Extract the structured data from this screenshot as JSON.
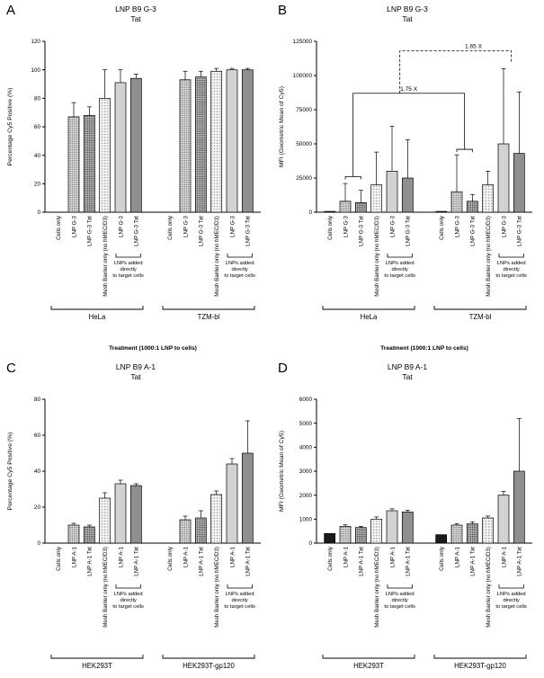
{
  "colors": {
    "black": "#1a1a1a",
    "gray-light": "#d2d2d2",
    "gray-dark": "#8f8f8f",
    "stipple-dark-bg": "#dedede",
    "stipple-dark-dot": "#4a4a4a",
    "stipple-darker-bg": "#c2c2c2",
    "stipple-darker-dot": "#383838",
    "stipple-light-bg": "#f3f3f3",
    "stipple-light-dot": "#6a6a6a",
    "axis": "#000000"
  },
  "bar_fills": [
    "black",
    "stipple-dark",
    "stipple-darker",
    "stipple-light",
    "gray-light",
    "gray-dark"
  ],
  "chart_data": [
    {
      "panel_letter": "A",
      "type": "bar",
      "title": "LNP B9 G-3\nTat",
      "ylabel": "Percentage Cy5 Positive (%)",
      "xlabel": "Treatment (1000:1 LNP to cells)",
      "ylim": [
        0,
        120
      ],
      "yticks": [
        0,
        20,
        40,
        60,
        80,
        100,
        120
      ],
      "categories": [
        "Cells only",
        "LNP G-3",
        "LNP G-3 Tat",
        "Mesh Barrier only (no hMEC/D3)",
        "LNP G-3",
        "LNP G-3 Tat"
      ],
      "series": [
        {
          "name": "HeLa",
          "values": [
            0,
            67,
            68,
            80,
            91,
            94
          ],
          "errors": [
            0,
            10,
            6,
            20,
            9,
            3
          ]
        },
        {
          "name": "TZM-bl",
          "values": [
            0,
            93,
            95,
            99,
            100,
            100
          ],
          "errors": [
            0,
            6,
            4,
            2,
            1,
            1
          ]
        }
      ],
      "direct_bracket": {
        "from": 4,
        "to": 5,
        "label": "LNPs added\ndirectly\nto target cells"
      },
      "comparisons": []
    },
    {
      "panel_letter": "B",
      "type": "bar",
      "title": "LNP B9 G-3\nTat",
      "ylabel": "MFI (Geometric Mean of Cy5)",
      "xlabel": "Treatment (1000:1 LNP to cells)",
      "ylim": [
        0,
        125000
      ],
      "yticks": [
        0,
        25000,
        50000,
        75000,
        100000,
        125000
      ],
      "categories": [
        "Cells only",
        "LNP G-3",
        "LNP G-3 Tat",
        "Mesh Barrier only (no hMEC/D3)",
        "LNP G-3",
        "LNP G-3 Tat"
      ],
      "series": [
        {
          "name": "HeLa",
          "values": [
            600,
            8000,
            7000,
            20000,
            30000,
            25000
          ],
          "errors": [
            0,
            13000,
            9000,
            24000,
            33000,
            28000
          ]
        },
        {
          "name": "TZM-bl",
          "values": [
            600,
            15000,
            8000,
            20000,
            50000,
            43000
          ],
          "errors": [
            0,
            27000,
            5000,
            10000,
            55000,
            45000
          ]
        }
      ],
      "direct_bracket": {
        "from": 4,
        "to": 5,
        "label": "LNPs added\ndirectly\nto target cells"
      },
      "comparisons": [
        {
          "label": "1.75 X",
          "style": "solid",
          "y": 87000,
          "label_t": 0.5,
          "ends": [
            {
              "group": 0,
              "pos": 1.5,
              "drop": 26000
            },
            {
              "group": 1,
              "pos": 1.5,
              "drop": 46000
            }
          ],
          "pair_brackets": [
            {
              "group": 0,
              "from": 1,
              "to": 2,
              "y": 26000
            },
            {
              "group": 1,
              "from": 1,
              "to": 2,
              "y": 46000
            }
          ]
        },
        {
          "label": "1.65 X",
          "style": "dashed",
          "y": 118000,
          "label_t": 0.66,
          "ends": [
            {
              "group": 0,
              "pos": 4.5,
              "drop": 87000
            },
            {
              "group": 1,
              "pos": 4.5,
              "drop": 109000
            }
          ],
          "pair_brackets": []
        }
      ]
    },
    {
      "panel_letter": "C",
      "type": "bar",
      "title": "LNP B9 A-1\nTat",
      "ylabel": "Percentage Cy5 Positive (%)",
      "xlabel": "",
      "ylim": [
        0,
        80
      ],
      "yticks": [
        0,
        20,
        40,
        60,
        80
      ],
      "categories": [
        "Cells only",
        "LNP A-1",
        "LNP A-1 Tat",
        "Mesh Barrier only (no hMEC/D3)",
        "LNP A-1",
        "LNP A-1 Tat"
      ],
      "series": [
        {
          "name": "HEK293T",
          "values": [
            0,
            10,
            9,
            25,
            33,
            32
          ],
          "errors": [
            0,
            1,
            1,
            3,
            2,
            1
          ]
        },
        {
          "name": "HEK293T-gp120",
          "values": [
            0,
            13,
            14,
            27,
            44,
            50
          ],
          "errors": [
            0,
            2,
            4,
            2,
            3,
            18
          ]
        }
      ],
      "direct_bracket": {
        "from": 4,
        "to": 5,
        "label": "LNPs added\ndirectly\nto target cells"
      },
      "comparisons": []
    },
    {
      "panel_letter": "D",
      "type": "bar",
      "title": "LNP B9 A-1\nTat",
      "ylabel": "MFI (Geometric Mean of Cy5)",
      "xlabel": "",
      "ylim": [
        0,
        6000
      ],
      "yticks": [
        0,
        1000,
        2000,
        3000,
        4000,
        5000,
        6000
      ],
      "categories": [
        "Cells only",
        "LNP A-1",
        "LNP A-1 Tat",
        "Mesh Barrier only (no hMEC/D3)",
        "LNP A-1",
        "LNP A-1 Tat"
      ],
      "series": [
        {
          "name": "HEK293T",
          "values": [
            400,
            700,
            650,
            1000,
            1350,
            1300
          ],
          "errors": [
            0,
            60,
            50,
            90,
            80,
            70
          ]
        },
        {
          "name": "HEK293T-gp120",
          "values": [
            350,
            750,
            800,
            1050,
            2000,
            3000
          ],
          "errors": [
            0,
            60,
            90,
            80,
            160,
            2200
          ]
        }
      ],
      "direct_bracket": {
        "from": 4,
        "to": 5,
        "label": "LNPs added\ndirectly\nto target cells"
      },
      "comparisons": []
    }
  ]
}
